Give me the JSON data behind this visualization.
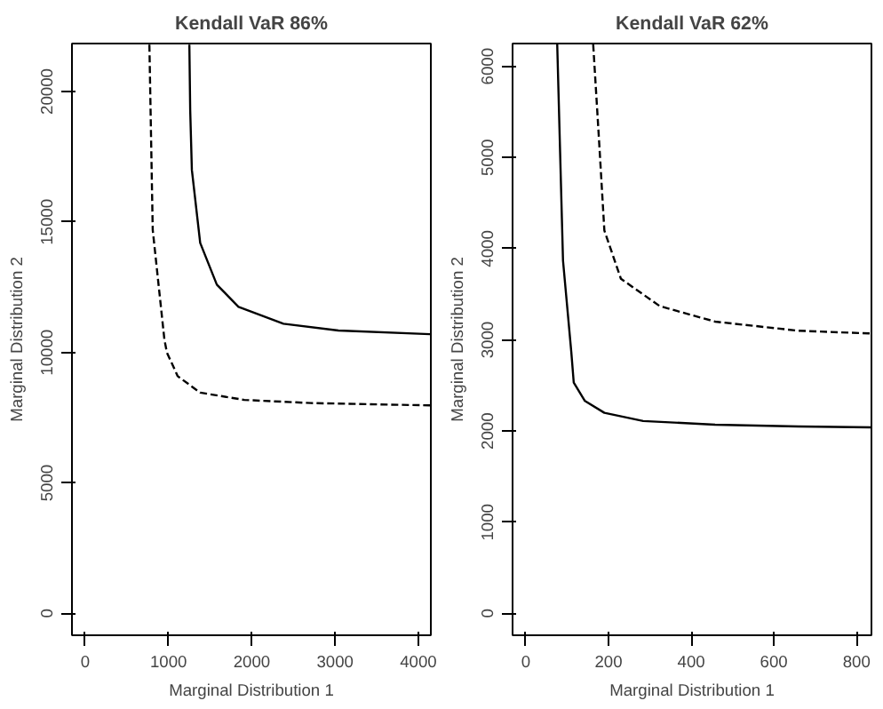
{
  "chart_data": [
    {
      "type": "line",
      "title": "Kendall VaR 86%",
      "xlabel": "Marginal Distribution 1",
      "ylabel": "Marginal Distribution 2",
      "xlim": [
        -160,
        4150
      ],
      "ylim": [
        -840,
        21840
      ],
      "xticks": [
        0,
        1000,
        2000,
        3000,
        4000
      ],
      "yticks": [
        0,
        5000,
        10000,
        15000,
        20000
      ],
      "grid": false,
      "series": [
        {
          "color": "#000000",
          "line_style": "solid",
          "x": [
            1250,
            1260,
            1280,
            1380,
            1580,
            1840,
            2380,
            3040,
            4140
          ],
          "values": [
            21800,
            19300,
            17000,
            14200,
            12600,
            11750,
            11100,
            10840,
            10700
          ]
        },
        {
          "color": "#000000",
          "line_style": "dashed",
          "x": [
            770,
            810,
            950,
            980,
            1110,
            1380,
            1910,
            2710,
            4140
          ],
          "values": [
            21800,
            14700,
            10500,
            10000,
            9090,
            8460,
            8180,
            8060,
            7970
          ]
        }
      ]
    },
    {
      "type": "line",
      "title": "Kendall VaR 62%",
      "xlabel": "Marginal Distribution 1",
      "ylabel": "Marginal Distribution 2",
      "xlim": [
        -32,
        836
      ],
      "ylim": [
        -240,
        6250
      ],
      "xticks": [
        0,
        200,
        400,
        600,
        800
      ],
      "yticks": [
        0,
        1000,
        2000,
        3000,
        4000,
        5000,
        6000
      ],
      "grid": false,
      "series": [
        {
          "color": "#000000",
          "line_style": "solid",
          "x": [
            76,
            90,
            110,
            116,
            143,
            190,
            284,
            458,
            659,
            834
          ],
          "values": [
            6240,
            3870,
            2870,
            2530,
            2330,
            2200,
            2110,
            2070,
            2050,
            2040
          ]
        },
        {
          "color": "#000000",
          "line_style": "dashed",
          "x": [
            163,
            177,
            190,
            230,
            324,
            458,
            659,
            834
          ],
          "values": [
            6240,
            5200,
            4200,
            3670,
            3370,
            3200,
            3100,
            3070
          ]
        }
      ]
    }
  ]
}
